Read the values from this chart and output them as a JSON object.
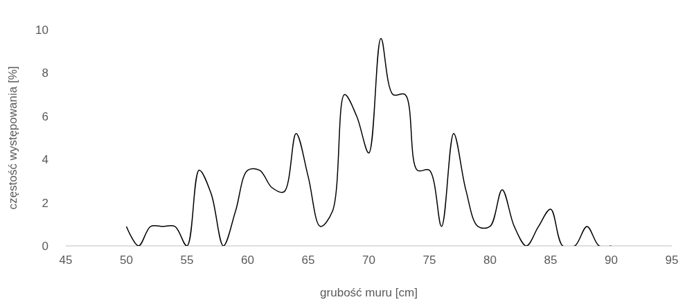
{
  "chart_data": {
    "type": "line",
    "xlabel": "grubość muru [cm]",
    "ylabel": "częstość występowania [%]",
    "x": [
      50,
      51,
      52,
      53,
      54,
      55,
      56,
      57,
      58,
      59,
      60,
      61,
      62,
      63,
      64,
      65,
      66,
      67,
      68,
      69,
      70,
      71,
      72,
      73,
      74,
      75,
      76,
      77,
      78,
      79,
      80,
      81,
      82,
      83,
      84,
      85,
      86,
      87,
      88,
      89,
      90
    ],
    "series": [
      {
        "color": "#000000",
        "values": [
          0.9,
          0,
          0.9,
          0.9,
          0.9,
          0,
          3.5,
          2.4,
          0,
          1.6,
          3.5,
          3.5,
          2.7,
          2.5,
          5.2,
          3.2,
          0.9,
          1.6,
          7.0,
          6.0,
          4.3,
          9.6,
          7.0,
          7.0,
          3.5,
          3.5,
          0.9,
          5.2,
          2.6,
          0.9,
          0.9,
          2.6,
          0.9,
          0,
          0.9,
          1.7,
          0,
          0,
          0.9,
          0,
          0
        ]
      }
    ],
    "xlim": [
      45,
      95
    ],
    "xticks": [
      45,
      50,
      55,
      60,
      65,
      70,
      75,
      80,
      85,
      90,
      95
    ],
    "ylim": [
      0,
      10
    ],
    "yticks": [
      0,
      2,
      4,
      6,
      8,
      10
    ],
    "grid": false,
    "marker": "none",
    "line_style": "solid"
  }
}
